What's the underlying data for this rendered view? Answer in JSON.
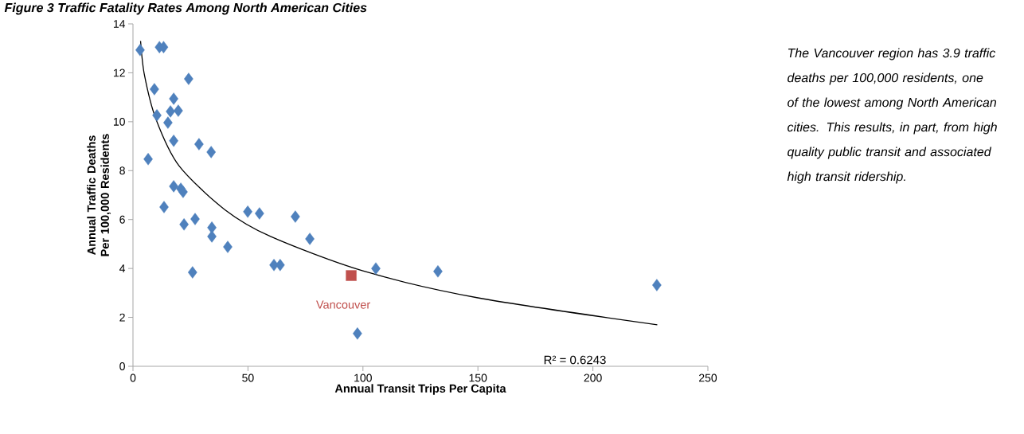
{
  "chart_data": {
    "type": "scatter",
    "title": "Figure 3     Traffic Fatality Rates Among North American Cities",
    "xlabel": "Annual Transit Trips Per Capita",
    "ylabel": "Annual Traffic Deaths Per 100,000 Residents",
    "xlim": [
      0,
      250
    ],
    "xticks": [
      0,
      50,
      100,
      150,
      200,
      250
    ],
    "ylim": [
      0,
      14
    ],
    "yticks": [
      0,
      2,
      4,
      6,
      8,
      10,
      12,
      14
    ],
    "grid": false,
    "series": [
      {
        "marker": "diamond",
        "color": "#4f81bd",
        "x": [
          3.1,
          11.5,
          13.3,
          24.2,
          9.3,
          17.7,
          16.3,
          19.7,
          10.4,
          15.2,
          17.7,
          28.7,
          34,
          6.6,
          17.7,
          20.8,
          21.8,
          13.5,
          49.9,
          55,
          70.6,
          76.9,
          27,
          22.2,
          34.3,
          34.3,
          41.2,
          25.9,
          61.3,
          64,
          105.6,
          132.6,
          227.8,
          97.6
        ],
        "values": [
          12.93,
          13.05,
          13.05,
          11.75,
          11.33,
          10.94,
          10.42,
          10.45,
          10.26,
          9.96,
          9.22,
          9.08,
          8.76,
          8.47,
          7.36,
          7.26,
          7.13,
          6.51,
          6.32,
          6.25,
          6.12,
          5.21,
          6.02,
          5.8,
          5.67,
          5.31,
          4.88,
          3.84,
          4.14,
          4.14,
          4.0,
          3.88,
          3.32,
          1.34
        ]
      },
      {
        "marker": "square",
        "name": "Vancouver",
        "color": "#c0504d",
        "x": [
          94.9
        ],
        "values": [
          3.71
        ]
      },
      {
        "type": "line",
        "marker": "none",
        "color": "#000000",
        "x": [
          3.3,
          5,
          10,
          20,
          40,
          60,
          100,
          150,
          228
        ],
        "values": [
          13.3,
          11.9,
          10.1,
          8.2,
          6.4,
          5.3,
          3.9,
          2.8,
          1.7
        ]
      }
    ],
    "annotations": [
      "R² = 0.6243",
      "The Vancouver region has 3.9 traffic deaths per 100,000 residents, one of the lowest among North American cities. This results, in part, from high quality public transit and associated high transit ridership."
    ]
  }
}
